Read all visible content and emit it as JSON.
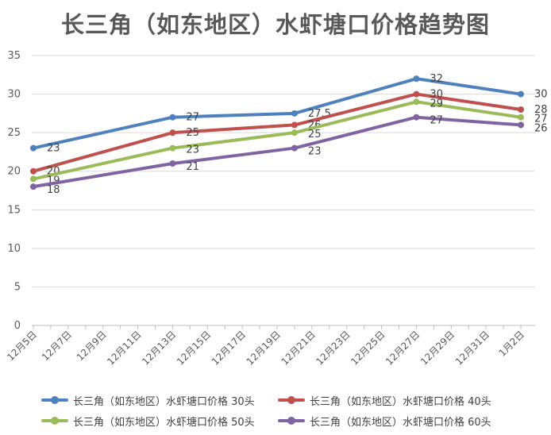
{
  "chart_data": {
    "type": "line",
    "title": "长三角（如东地区）水虾塘口价格趋势图",
    "xlabel": "",
    "ylabel": "",
    "ylim": [
      0,
      35
    ],
    "yticks": [
      0,
      5,
      10,
      15,
      20,
      25,
      30,
      35
    ],
    "grid": true,
    "legend_position": "bottom",
    "x_tick_labels": [
      "12月5日",
      "12月7日",
      "12月9日",
      "12月11日",
      "12月13日",
      "12月15日",
      "12月17日",
      "12月19日",
      "12月21日",
      "12月23日",
      "12月25日",
      "12月27日",
      "12月29日",
      "12月31日",
      "1月2日"
    ],
    "x_dates": [
      "12月5日",
      "12月13日",
      "12月20日",
      "12月27日",
      "1月2日"
    ],
    "x_day_index": [
      0,
      8,
      15,
      22,
      28
    ],
    "series": [
      {
        "name": "长三角（如东地区）水虾塘口价格 30头",
        "color": "#4F81BD",
        "values": [
          23,
          27,
          27.5,
          32,
          30
        ],
        "labels": [
          "23",
          "27",
          "27.5",
          "32",
          "30"
        ]
      },
      {
        "name": "长三角（如东地区）水虾塘口价格 40头",
        "color": "#C0504D",
        "values": [
          20,
          25,
          26,
          30,
          28
        ],
        "labels": [
          "20",
          "25",
          "26",
          "30",
          "28"
        ]
      },
      {
        "name": "长三角（如东地区）水虾塘口价格 50头",
        "color": "#9BBB59",
        "values": [
          19,
          23,
          25,
          29,
          27
        ],
        "labels": [
          "19",
          "23",
          "25",
          "29",
          "27"
        ]
      },
      {
        "name": "长三角（如东地区）水虾塘口价格 60头",
        "color": "#8064A2",
        "values": [
          18,
          21,
          23,
          27,
          26
        ],
        "labels": [
          "18",
          "21",
          "23",
          "27",
          "26"
        ]
      }
    ]
  }
}
